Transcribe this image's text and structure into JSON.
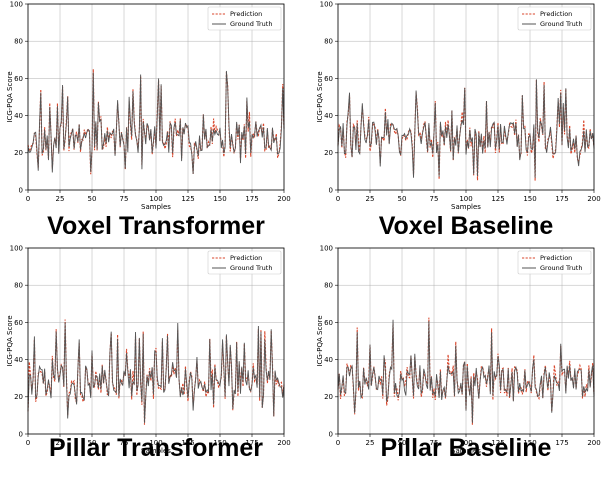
{
  "panels": [
    {
      "title": "Voxel Transformer",
      "seed": 11
    },
    {
      "title": "Voxel Baseline",
      "seed": 29
    },
    {
      "title": "Pillar Transformer",
      "seed": 47
    },
    {
      "title": "Pillar Baseline",
      "seed": 83
    }
  ],
  "shared": {
    "xlabel": "Samples",
    "ylabel": "ICG-PQA Score",
    "xlim": [
      0,
      200
    ],
    "ylim": [
      0,
      100
    ],
    "xticks": [
      "0",
      "25",
      "50",
      "75",
      "100",
      "125",
      "150",
      "175",
      "200"
    ],
    "yticks": [
      "0",
      "20",
      "40",
      "60",
      "80",
      "100"
    ],
    "legend": {
      "prediction": "Prediction",
      "ground_truth": "Ground Truth"
    },
    "colors": {
      "prediction": "#d9462b",
      "ground_truth": "#555555",
      "grid": "#b0b0b0"
    }
  },
  "chart_data": [
    {
      "type": "line",
      "title": "Voxel Transformer",
      "xlabel": "Samples",
      "ylabel": "ICG-PQA Score",
      "xlim": [
        0,
        200
      ],
      "ylim": [
        0,
        100
      ],
      "grid": true,
      "legend": "top-right",
      "series": [
        {
          "name": "Prediction",
          "style": "dashed"
        },
        {
          "name": "Ground Truth",
          "style": "solid"
        }
      ],
      "y_range_observed": [
        8,
        60
      ]
    },
    {
      "type": "line",
      "title": "Voxel Baseline",
      "xlabel": "Samples",
      "ylabel": "ICG-PQA Score",
      "xlim": [
        0,
        200
      ],
      "ylim": [
        0,
        100
      ],
      "grid": true,
      "legend": "top-right",
      "series": [
        {
          "name": "Prediction",
          "style": "dashed"
        },
        {
          "name": "Ground Truth",
          "style": "solid"
        }
      ],
      "y_range_observed": [
        7,
        64
      ]
    },
    {
      "type": "line",
      "title": "Pillar Transformer",
      "xlabel": "Samples",
      "ylabel": "ICG-PQA Score",
      "xlim": [
        0,
        200
      ],
      "ylim": [
        0,
        100
      ],
      "grid": true,
      "legend": "top-right",
      "series": [
        {
          "name": "Prediction",
          "style": "dashed"
        },
        {
          "name": "Ground Truth",
          "style": "solid"
        }
      ],
      "y_range_observed": [
        8,
        64
      ]
    },
    {
      "type": "line",
      "title": "Pillar Baseline",
      "xlabel": "Samples",
      "ylabel": "ICG-PQA Score",
      "xlim": [
        0,
        200
      ],
      "ylim": [
        0,
        100
      ],
      "grid": true,
      "legend": "top-right",
      "series": [
        {
          "name": "Prediction",
          "style": "dashed"
        },
        {
          "name": "Ground Truth",
          "style": "solid"
        }
      ],
      "y_range_observed": [
        7,
        62
      ]
    }
  ]
}
